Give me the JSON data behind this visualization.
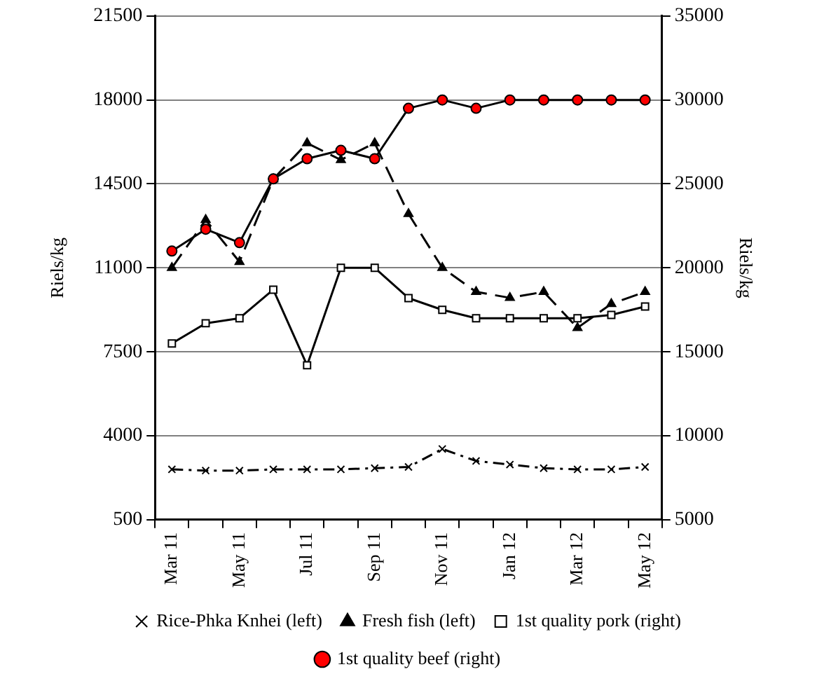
{
  "chart_data": {
    "type": "line",
    "categories": [
      "Mar 11",
      null,
      "May 11",
      null,
      "Jul 11",
      null,
      "Sep 11",
      null,
      "Nov 11",
      null,
      "Jan 12",
      null,
      "Mar 12",
      null,
      "May 12"
    ],
    "ylabel": "Riels/kg",
    "y2label": "Riels/kg",
    "ylim": [
      500,
      21500
    ],
    "yticks": [
      500,
      4000,
      7500,
      11000,
      14500,
      18000,
      21500
    ],
    "y2lim": [
      5000,
      35000
    ],
    "y2ticks": [
      5000,
      10000,
      15000,
      20000,
      25000,
      30000,
      35000
    ],
    "grid": "y",
    "legend": "bottom",
    "series": [
      {
        "name": "Rice-Phka Knhei (left)",
        "color": "#000000",
        "marker": "cross",
        "line_style": "dashdot",
        "axis": "y",
        "values": [
          2600,
          2550,
          2550,
          2600,
          2600,
          2600,
          2650,
          2700,
          3450,
          2950,
          2800,
          2650,
          2600,
          2600,
          2700
        ]
      },
      {
        "name": "Fresh fish (left)",
        "color": "#000000",
        "marker": "triangle",
        "line_style": "dashed",
        "axis": "y",
        "values": [
          11000,
          13000,
          11250,
          14700,
          16200,
          15500,
          16200,
          13250,
          11000,
          10000,
          9750,
          10000,
          8500,
          9500,
          10000
        ]
      },
      {
        "name": "1st quality pork (right)",
        "color": "#ffffff",
        "marker": "square",
        "line_style": "solid",
        "axis": "y2",
        "values": [
          15500,
          16700,
          17000,
          18700,
          14200,
          20000,
          20000,
          18200,
          17500,
          17000,
          17000,
          17000,
          17000,
          17200,
          17700
        ]
      },
      {
        "name": "1st quality beef (right)",
        "color": "#ff0000",
        "marker": "circle",
        "line_style": "solid",
        "axis": "y2",
        "values": [
          21000,
          22300,
          21500,
          25300,
          26500,
          27000,
          26500,
          29500,
          30000,
          29500,
          30000,
          30000,
          30000,
          30000,
          30000
        ]
      }
    ]
  }
}
